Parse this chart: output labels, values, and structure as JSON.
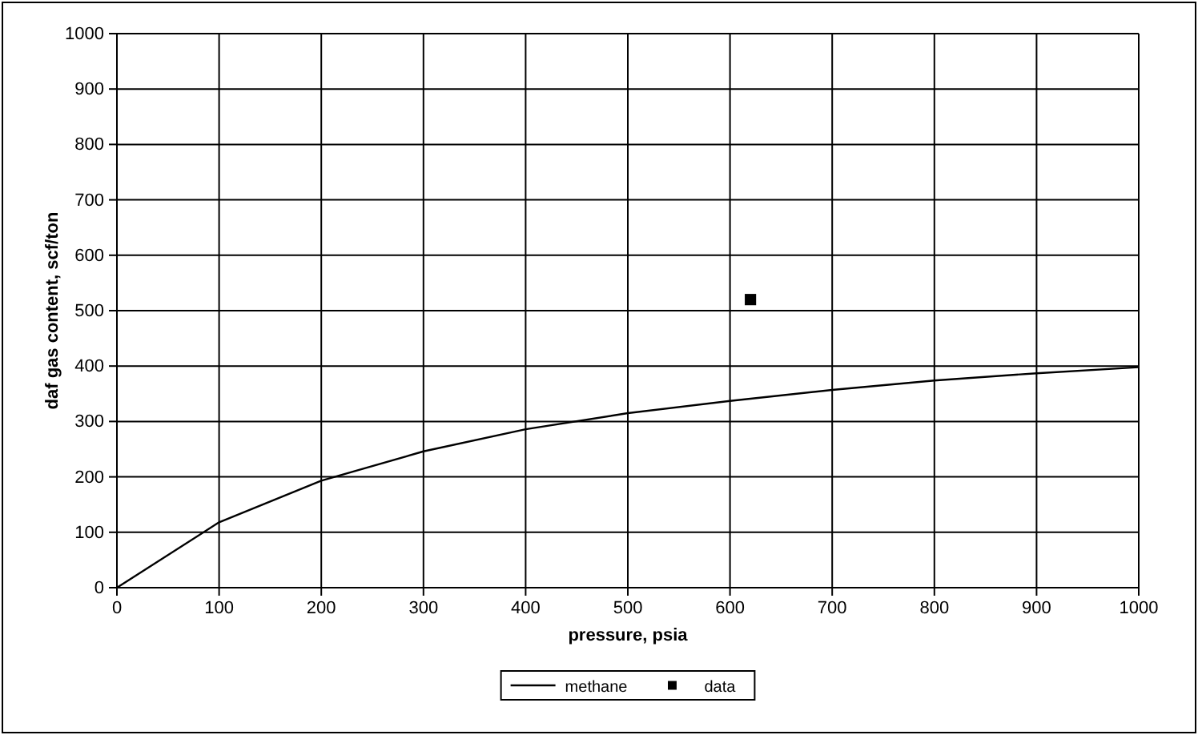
{
  "chart_data": {
    "type": "line",
    "xlabel": "pressure, psia",
    "ylabel": "daf gas content, scf/ton",
    "xlim": [
      0,
      1000
    ],
    "xticks": [
      0,
      100,
      200,
      300,
      400,
      500,
      600,
      700,
      800,
      900,
      1000
    ],
    "ylim": [
      0,
      1000
    ],
    "yticks": [
      0,
      100,
      200,
      300,
      400,
      500,
      600,
      700,
      800,
      900,
      1000
    ],
    "grid": true,
    "legend": "bottom",
    "series": [
      {
        "name": "methane",
        "color": "#000000",
        "marker": "none",
        "x": [
          0,
          100,
          200,
          300,
          400,
          500,
          600,
          700,
          800,
          900,
          1000
        ],
        "values": [
          0,
          118,
          193,
          246,
          286,
          315,
          337,
          357,
          374,
          387,
          398
        ]
      },
      {
        "name": "data",
        "type": "scatter",
        "color": "#000000",
        "marker": "square",
        "x": [
          620
        ],
        "values": [
          520
        ]
      }
    ]
  }
}
